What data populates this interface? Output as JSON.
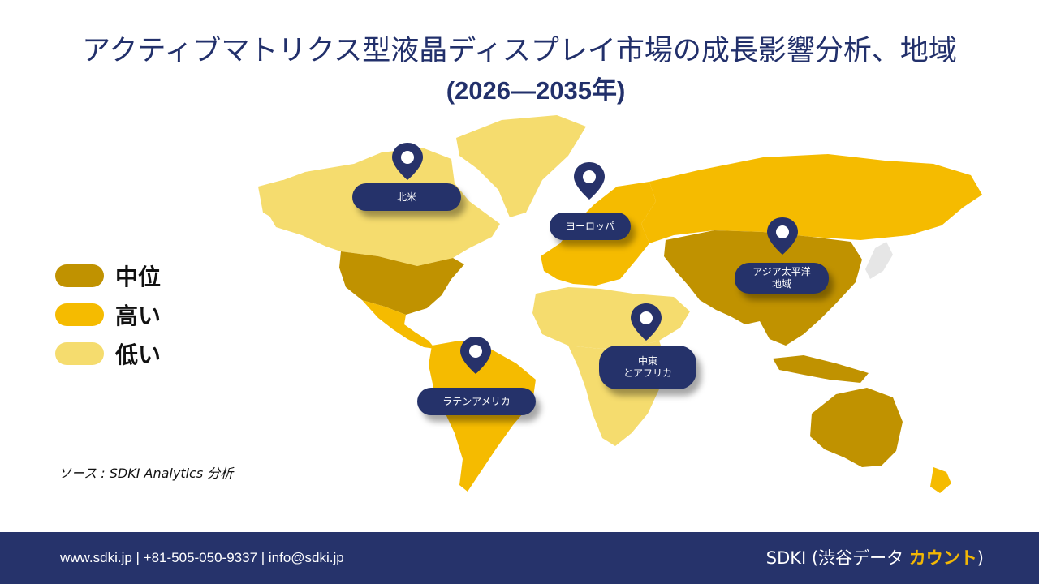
{
  "title": "アクティブマトリクス型液晶ディスプレイ市場の成長影響分析、地域",
  "subtitle": "(2026—2035年)",
  "legend": {
    "items": [
      {
        "label": "中位",
        "color": "#c09200"
      },
      {
        "label": "高い",
        "color": "#f5bb00"
      },
      {
        "label": "低い",
        "color": "#f5dc6e"
      }
    ]
  },
  "regions": {
    "north_america": {
      "label": "北米",
      "level": "中位"
    },
    "europe": {
      "label": "ヨーロッパ",
      "level": "高い"
    },
    "asia_pacific": {
      "label_line1": "アジア太平洋",
      "label_line2": "地域",
      "level": "中位"
    },
    "middle_east_africa": {
      "label_line1": "中東",
      "label_line2": "とアフリカ",
      "level": "低い"
    },
    "latin_america": {
      "label": "ラテンアメリカ",
      "level": "高い"
    }
  },
  "colors": {
    "pin": "#27326a",
    "non_highlight": "#ffffff"
  },
  "source": "ソース : SDKI Analytics 分析",
  "footer": {
    "contact": "www.sdki.jp  | +81-505-050-9337 | info@sdki.jp",
    "brand_prefix": "SDKI (渋谷データ ",
    "brand_accent": "カウント",
    "brand_suffix": ")"
  }
}
